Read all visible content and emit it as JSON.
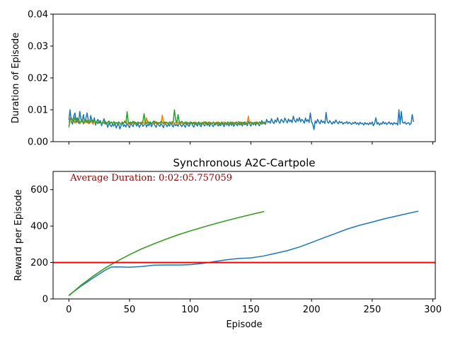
{
  "chart_data": [
    {
      "type": "line",
      "title": "",
      "xlabel": "",
      "ylabel": "Duration of Episode",
      "xlim": [
        -13,
        302
      ],
      "ylim": [
        0,
        0.04
      ],
      "yticks": [
        0,
        0.01,
        0.02,
        0.03,
        0.04
      ],
      "ytick_labels": [
        "0.00",
        "0.01",
        "0.02",
        "0.03",
        "0.04"
      ],
      "xticks": [
        0,
        50,
        100,
        150,
        200,
        250,
        300
      ],
      "show_xtick_labels": false,
      "grid": false,
      "colors": [
        "#1f77b4",
        "#ff7f0e",
        "#2ca02c"
      ],
      "series": [
        {
          "length": 289,
          "values": [
            0.0068,
            0.01,
            0.0063,
            0.0055,
            0.008,
            0.009,
            0.0065,
            0.0075,
            0.0058,
            0.0095,
            0.007,
            0.0062,
            0.0085,
            0.006,
            0.0072,
            0.009,
            0.0068,
            0.0057,
            0.0082,
            0.0066,
            0.006,
            0.0075,
            0.0052,
            0.0064,
            0.007,
            0.0058,
            0.0066,
            0.005,
            0.0062,
            0.0072,
            0.0055,
            0.006,
            0.0045,
            0.0058,
            0.0052,
            0.0047,
            0.0055,
            0.0049,
            0.006,
            0.0043,
            0.0052,
            0.0056,
            0.004,
            0.005,
            0.0062,
            0.0048,
            0.0053,
            0.0046,
            0.0058,
            0.005,
            0.0044,
            0.006,
            0.0052,
            0.0047,
            0.0063,
            0.0055,
            0.0049,
            0.0057,
            0.0045,
            0.0052,
            0.006,
            0.0048,
            0.0053,
            0.0058,
            0.0046,
            0.0055,
            0.005,
            0.0062,
            0.0047,
            0.0054,
            0.0058,
            0.005,
            0.0045,
            0.006,
            0.0052,
            0.0048,
            0.0057,
            0.0051,
            0.0044,
            0.0059,
            0.0053,
            0.0047,
            0.0055,
            0.0049,
            0.0061,
            0.0052,
            0.0046,
            0.0058,
            0.005,
            0.0054,
            0.0048,
            0.006,
            0.0053,
            0.0047,
            0.0056,
            0.0051,
            0.0045,
            0.0059,
            0.0052,
            0.0048,
            0.0055,
            0.0061,
            0.005,
            0.0046,
            0.0057,
            0.0053,
            0.0049,
            0.006,
            0.0052,
            0.0047,
            0.0058,
            0.0054,
            0.0049,
            0.0062,
            0.0051,
            0.0056,
            0.0048,
            0.0059,
            0.0053,
            0.0047,
            0.0057,
            0.0052,
            0.0061,
            0.0049,
            0.0055,
            0.005,
            0.0058,
            0.0053,
            0.0047,
            0.006,
            0.0052,
            0.0056,
            0.0049,
            0.0062,
            0.0051,
            0.0057,
            0.0048,
            0.0059,
            0.0054,
            0.005,
            0.0063,
            0.0052,
            0.0057,
            0.0049,
            0.0061,
            0.0053,
            0.0058,
            0.005,
            0.0064,
            0.0055,
            0.0049,
            0.006,
            0.0053,
            0.0058,
            0.0051,
            0.0062,
            0.0055,
            0.005,
            0.0059,
            0.0066,
            0.0057,
            0.0062,
            0.0054,
            0.007,
            0.006,
            0.0064,
            0.0058,
            0.0072,
            0.0062,
            0.0057,
            0.0068,
            0.0061,
            0.0075,
            0.0063,
            0.0058,
            0.007,
            0.0065,
            0.006,
            0.0074,
            0.0066,
            0.0059,
            0.0071,
            0.0063,
            0.0068,
            0.006,
            0.008,
            0.0066,
            0.0061,
            0.0072,
            0.0064,
            0.0076,
            0.0062,
            0.007,
            0.0066,
            0.0058,
            0.0074,
            0.0063,
            0.0069,
            0.006,
            0.009,
            0.0062,
            0.0055,
            0.0038,
            0.0065,
            0.0058,
            0.007,
            0.0062,
            0.0056,
            0.0068,
            0.006,
            0.0064,
            0.0057,
            0.0092,
            0.0062,
            0.0058,
            0.0066,
            0.006,
            0.0055,
            0.0063,
            0.0058,
            0.0068,
            0.0061,
            0.0056,
            0.0064,
            0.0059,
            0.0062,
            0.0055,
            0.006,
            0.0058,
            0.0063,
            0.0056,
            0.0061,
            0.0058,
            0.0054,
            0.006,
            0.0057,
            0.0062,
            0.0055,
            0.0059,
            0.0053,
            0.0061,
            0.0056,
            0.0058,
            0.0052,
            0.006,
            0.0055,
            0.0058,
            0.0053,
            0.006,
            0.0055,
            0.0062,
            0.005,
            0.0058,
            0.0075,
            0.0055,
            0.006,
            0.0052,
            0.0058,
            0.0055,
            0.0063,
            0.0056,
            0.006,
            0.0054,
            0.0058,
            0.0062,
            0.0055,
            0.0059,
            0.0053,
            0.006,
            0.0056,
            0.0058,
            0.0052,
            0.01,
            0.0055,
            0.0095,
            0.006,
            0.0058,
            0.0062,
            0.0055,
            0.0058,
            0.006,
            0.0053,
            0.0057,
            0.0085,
            0.0062
          ]
        },
        {
          "length": 162,
          "values": [
            0.006,
            0.0072,
            0.0066,
            0.0062,
            0.007,
            0.0058,
            0.0066,
            0.0061,
            0.0068,
            0.0056,
            0.0063,
            0.007,
            0.0059,
            0.0065,
            0.006,
            0.0068,
            0.0057,
            0.0063,
            0.0066,
            0.006,
            0.0055,
            0.0064,
            0.0059,
            0.0062,
            0.0057,
            0.0065,
            0.006,
            0.0054,
            0.0062,
            0.0058,
            0.0063,
            0.0056,
            0.006,
            0.0064,
            0.0057,
            0.0061,
            0.0055,
            0.0063,
            0.0058,
            0.006,
            0.0056,
            0.0062,
            0.0058,
            0.0055,
            0.006,
            0.0057,
            0.0065,
            0.0062,
            0.0058,
            0.0054,
            0.0061,
            0.0057,
            0.006,
            0.0056,
            0.0063,
            0.0058,
            0.0055,
            0.0061,
            0.0059,
            0.0056,
            0.0062,
            0.0058,
            0.006,
            0.0055,
            0.0075,
            0.006,
            0.0057,
            0.0062,
            0.0058,
            0.0055,
            0.006,
            0.0064,
            0.0057,
            0.0061,
            0.0056,
            0.006,
            0.0058,
            0.0083,
            0.006,
            0.0056,
            0.0062,
            0.0058,
            0.0055,
            0.006,
            0.0057,
            0.0063,
            0.0058,
            0.0055,
            0.0061,
            0.0057,
            0.006,
            0.0056,
            0.0062,
            0.0058,
            0.0055,
            0.006,
            0.0057,
            0.0062,
            0.0058,
            0.0055,
            0.0061,
            0.0057,
            0.006,
            0.0056,
            0.0062,
            0.0058,
            0.0055,
            0.0061,
            0.0057,
            0.006,
            0.0056,
            0.0062,
            0.0058,
            0.0055,
            0.006,
            0.0057,
            0.0062,
            0.0058,
            0.0055,
            0.0061,
            0.0057,
            0.006,
            0.0056,
            0.0062,
            0.0058,
            0.0055,
            0.006,
            0.0057,
            0.0062,
            0.0058,
            0.0055,
            0.0061,
            0.0057,
            0.006,
            0.0056,
            0.0062,
            0.0058,
            0.0055,
            0.0061,
            0.0057,
            0.006,
            0.0056,
            0.0062,
            0.0058,
            0.0055,
            0.006,
            0.0057,
            0.0062,
            0.008,
            0.0055,
            0.0061,
            0.0057,
            0.006,
            0.0056,
            0.0062,
            0.0058,
            0.0055,
            0.0061,
            0.0057,
            0.006,
            0.0056,
            0.0062
          ]
        },
        {
          "length": 162,
          "values": [
            0.0045,
            0.007,
            0.0075,
            0.0068,
            0.0062,
            0.0078,
            0.006,
            0.0066,
            0.0072,
            0.0058,
            0.0064,
            0.007,
            0.0056,
            0.0062,
            0.0068,
            0.006,
            0.0066,
            0.0058,
            0.0064,
            0.007,
            0.0062,
            0.0068,
            0.0059,
            0.0064,
            0.0057,
            0.0065,
            0.006,
            0.0055,
            0.0062,
            0.0058,
            0.0064,
            0.0056,
            0.006,
            0.0065,
            0.0057,
            0.0062,
            0.0055,
            0.0063,
            0.0058,
            0.006,
            0.0056,
            0.0062,
            0.0058,
            0.0055,
            0.006,
            0.0057,
            0.0063,
            0.0058,
            0.0094,
            0.006,
            0.0056,
            0.0062,
            0.0058,
            0.0064,
            0.0057,
            0.0061,
            0.0056,
            0.0062,
            0.0058,
            0.006,
            0.0056,
            0.0063,
            0.0088,
            0.006,
            0.0057,
            0.0064,
            0.0058,
            0.0062,
            0.0056,
            0.006,
            0.0065,
            0.0058,
            0.0062,
            0.0056,
            0.006,
            0.0058,
            0.0064,
            0.006,
            0.0057,
            0.0062,
            0.0058,
            0.006,
            0.0056,
            0.0062,
            0.0058,
            0.0055,
            0.0062,
            0.01,
            0.0068,
            0.006,
            0.0085,
            0.0062,
            0.0058,
            0.0064,
            0.006,
            0.0056,
            0.0062,
            0.0058,
            0.006,
            0.0056,
            0.0062,
            0.0058,
            0.0055,
            0.0061,
            0.0057,
            0.006,
            0.0056,
            0.0062,
            0.0058,
            0.0055,
            0.006,
            0.0057,
            0.0062,
            0.0058,
            0.0055,
            0.0061,
            0.0057,
            0.006,
            0.0056,
            0.0062,
            0.0058,
            0.0055,
            0.0061,
            0.0057,
            0.006,
            0.0056,
            0.0062,
            0.0058,
            0.0055,
            0.006,
            0.0057,
            0.0062,
            0.0058,
            0.0055,
            0.0061,
            0.0057,
            0.006,
            0.0056,
            0.0062,
            0.0058,
            0.0055,
            0.0061,
            0.0057,
            0.006,
            0.0056,
            0.0062,
            0.0058,
            0.0055,
            0.006,
            0.0057,
            0.0062,
            0.0058,
            0.0055,
            0.0061,
            0.0057,
            0.006,
            0.0056,
            0.0062,
            0.0058,
            0.0055,
            0.0061,
            0.0057,
            0.006
          ]
        }
      ]
    },
    {
      "type": "line",
      "title": "Synchronous A2C-Cartpole",
      "xlabel": "Episode",
      "ylabel": "Reward per Episode",
      "xlim": [
        -13,
        302
      ],
      "ylim": [
        0,
        700
      ],
      "yticks": [
        0,
        200,
        400,
        600
      ],
      "xticks": [
        0,
        50,
        100,
        150,
        200,
        250,
        300
      ],
      "grid": false,
      "colors": [
        "#1f77b4",
        "#ff7f0e",
        "#2ca02c"
      ],
      "annotation": {
        "text": "Average Duration: 0:02:05.757059",
        "color": "#8b0000",
        "x": 0,
        "y": 650
      },
      "hline": {
        "y": 200,
        "color": "#ff0000"
      },
      "series": [
        {
          "points": [
            [
              0,
              20
            ],
            [
              10,
              70
            ],
            [
              20,
              115
            ],
            [
              30,
              158
            ],
            [
              35,
              175
            ],
            [
              40,
              176
            ],
            [
              50,
              174
            ],
            [
              60,
              178
            ],
            [
              70,
              185
            ],
            [
              80,
              186
            ],
            [
              90,
              186
            ],
            [
              100,
              188
            ],
            [
              110,
              195
            ],
            [
              120,
              205
            ],
            [
              130,
              215
            ],
            [
              140,
              222
            ],
            [
              150,
              225
            ],
            [
              160,
              235
            ],
            [
              170,
              250
            ],
            [
              180,
              265
            ],
            [
              190,
              285
            ],
            [
              200,
              310
            ],
            [
              210,
              335
            ],
            [
              220,
              360
            ],
            [
              230,
              385
            ],
            [
              240,
              405
            ],
            [
              250,
              422
            ],
            [
              260,
              440
            ],
            [
              270,
              455
            ],
            [
              280,
              470
            ],
            [
              288,
              482
            ]
          ]
        },
        {
          "points": [
            [
              0,
              18
            ],
            [
              10,
              75
            ],
            [
              20,
              125
            ],
            [
              30,
              170
            ],
            [
              40,
              208
            ],
            [
              50,
              243
            ],
            [
              60,
              275
            ],
            [
              70,
              302
            ],
            [
              80,
              328
            ],
            [
              90,
              352
            ],
            [
              100,
              373
            ],
            [
              110,
              393
            ],
            [
              120,
              412
            ],
            [
              130,
              430
            ],
            [
              140,
              447
            ],
            [
              150,
              463
            ],
            [
              155,
              471
            ],
            [
              161,
              480
            ]
          ]
        },
        {
          "points": [
            [
              0,
              18
            ],
            [
              10,
              75
            ],
            [
              20,
              125
            ],
            [
              30,
              170
            ],
            [
              40,
              208
            ],
            [
              50,
              243
            ],
            [
              60,
              275
            ],
            [
              70,
              302
            ],
            [
              80,
              328
            ],
            [
              90,
              352
            ],
            [
              100,
              373
            ],
            [
              110,
              393
            ],
            [
              120,
              412
            ],
            [
              130,
              430
            ],
            [
              140,
              447
            ],
            [
              150,
              463
            ],
            [
              155,
              471
            ],
            [
              161,
              480
            ]
          ]
        }
      ]
    }
  ]
}
